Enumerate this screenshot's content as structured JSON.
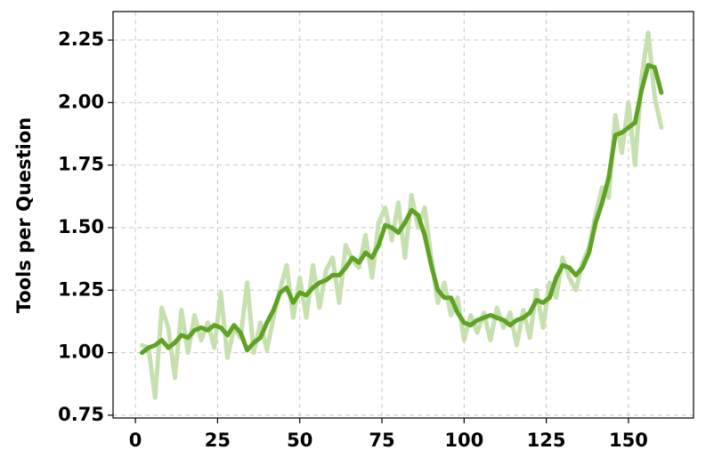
{
  "chart_data": {
    "type": "line",
    "y_label": "Tools per Question",
    "x": [
      2,
      4,
      6,
      8,
      10,
      12,
      14,
      16,
      18,
      20,
      22,
      24,
      26,
      28,
      30,
      32,
      34,
      36,
      38,
      40,
      42,
      44,
      46,
      48,
      50,
      52,
      54,
      56,
      58,
      60,
      62,
      64,
      66,
      68,
      70,
      72,
      74,
      76,
      78,
      80,
      82,
      84,
      86,
      88,
      90,
      92,
      94,
      96,
      98,
      100,
      102,
      104,
      106,
      108,
      110,
      112,
      114,
      116,
      118,
      120,
      122,
      124,
      126,
      128,
      130,
      132,
      134,
      136,
      138,
      140,
      142,
      144,
      146,
      148,
      150,
      152,
      154,
      156,
      158,
      160
    ],
    "series": [
      {
        "color": "#c6e0b0",
        "width": 5,
        "values": [
          1.03,
          1.02,
          0.82,
          1.18,
          1.1,
          0.9,
          1.17,
          1.0,
          1.15,
          1.05,
          1.12,
          1.02,
          1.24,
          0.98,
          1.1,
          1.06,
          1.28,
          1.0,
          1.12,
          1.01,
          1.14,
          1.25,
          1.35,
          1.14,
          1.3,
          1.14,
          1.35,
          1.18,
          1.33,
          1.38,
          1.2,
          1.43,
          1.37,
          1.34,
          1.47,
          1.3,
          1.52,
          1.58,
          1.45,
          1.6,
          1.38,
          1.63,
          1.5,
          1.58,
          1.38,
          1.2,
          1.28,
          1.15,
          1.22,
          1.05,
          1.15,
          1.08,
          1.16,
          1.05,
          1.18,
          1.1,
          1.16,
          1.03,
          1.17,
          1.06,
          1.25,
          1.1,
          1.28,
          1.22,
          1.38,
          1.3,
          1.25,
          1.36,
          1.42,
          1.55,
          1.66,
          1.62,
          1.95,
          1.8,
          2.0,
          1.75,
          2.1,
          2.28,
          2.02,
          1.9
        ]
      },
      {
        "color": "#5fa324",
        "width": 5,
        "values": [
          1.0,
          1.02,
          1.03,
          1.05,
          1.02,
          1.04,
          1.07,
          1.06,
          1.09,
          1.1,
          1.09,
          1.11,
          1.1,
          1.07,
          1.11,
          1.08,
          1.01,
          1.04,
          1.06,
          1.12,
          1.17,
          1.24,
          1.26,
          1.2,
          1.24,
          1.23,
          1.26,
          1.28,
          1.29,
          1.31,
          1.31,
          1.34,
          1.38,
          1.36,
          1.4,
          1.38,
          1.43,
          1.51,
          1.5,
          1.48,
          1.52,
          1.57,
          1.55,
          1.47,
          1.35,
          1.25,
          1.22,
          1.22,
          1.16,
          1.12,
          1.11,
          1.13,
          1.14,
          1.15,
          1.14,
          1.13,
          1.11,
          1.13,
          1.14,
          1.16,
          1.21,
          1.2,
          1.22,
          1.3,
          1.35,
          1.34,
          1.31,
          1.34,
          1.4,
          1.52,
          1.6,
          1.7,
          1.87,
          1.88,
          1.9,
          1.92,
          2.05,
          2.15,
          2.14,
          2.04
        ]
      }
    ],
    "xlim": [
      -6.8,
      169.8
    ],
    "xticks": [
      0,
      25,
      50,
      75,
      100,
      125,
      150
    ],
    "ylim": [
      0.739,
      2.364
    ],
    "yticks": [
      0.75,
      {
        "value": 1,
        "label": "1.00"
      },
      1.25,
      {
        "value": 1.5,
        "label": "1.50"
      },
      1.75,
      {
        "value": 2,
        "label": "2.00"
      },
      2.25
    ],
    "grid": true
  }
}
